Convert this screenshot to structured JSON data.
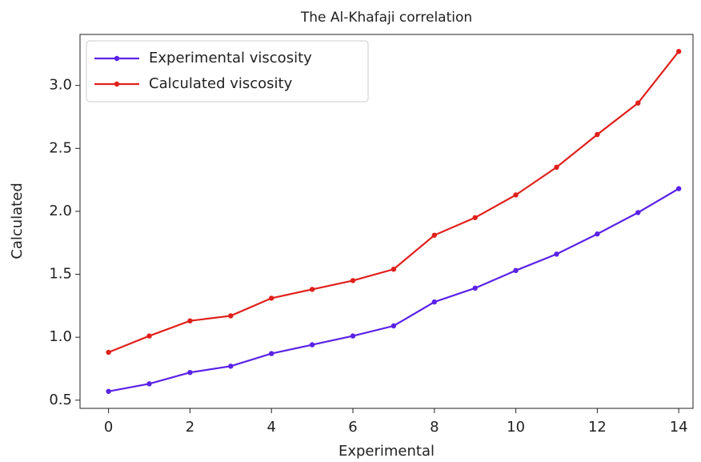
{
  "chart_data": {
    "type": "line",
    "title": "The Al-Khafaji correlation",
    "x_label": "Experimental",
    "y_label": "Calculated",
    "x": [
      0,
      1,
      2,
      3,
      4,
      5,
      6,
      7,
      8,
      9,
      10,
      11,
      12,
      13,
      14
    ],
    "series": [
      {
        "name": "Experimental viscosity",
        "color": "#5a22e6",
        "values": [
          0.57,
          0.63,
          0.72,
          0.77,
          0.87,
          0.94,
          1.01,
          1.09,
          1.28,
          1.39,
          1.53,
          1.66,
          1.82,
          1.99,
          2.18
        ]
      },
      {
        "name": "Calculated viscosity",
        "color": "#e0201c",
        "values": [
          0.88,
          1.01,
          1.13,
          1.17,
          1.31,
          1.38,
          1.45,
          1.54,
          1.81,
          1.95,
          2.13,
          2.35,
          2.61,
          2.86,
          3.27
        ]
      }
    ],
    "xlim": [
      -0.7,
      14.35
    ],
    "ylim": [
      0.435,
      3.405
    ],
    "xticks": [
      0,
      2,
      4,
      6,
      8,
      10,
      12,
      14
    ],
    "yticks": [
      0.5,
      {
        "value": 1,
        "label": "1.0"
      },
      1.5,
      {
        "value": 2,
        "label": "2.0"
      },
      2.5,
      {
        "value": 3,
        "label": "3.0"
      }
    ],
    "legend": "upper left",
    "grid": false
  }
}
